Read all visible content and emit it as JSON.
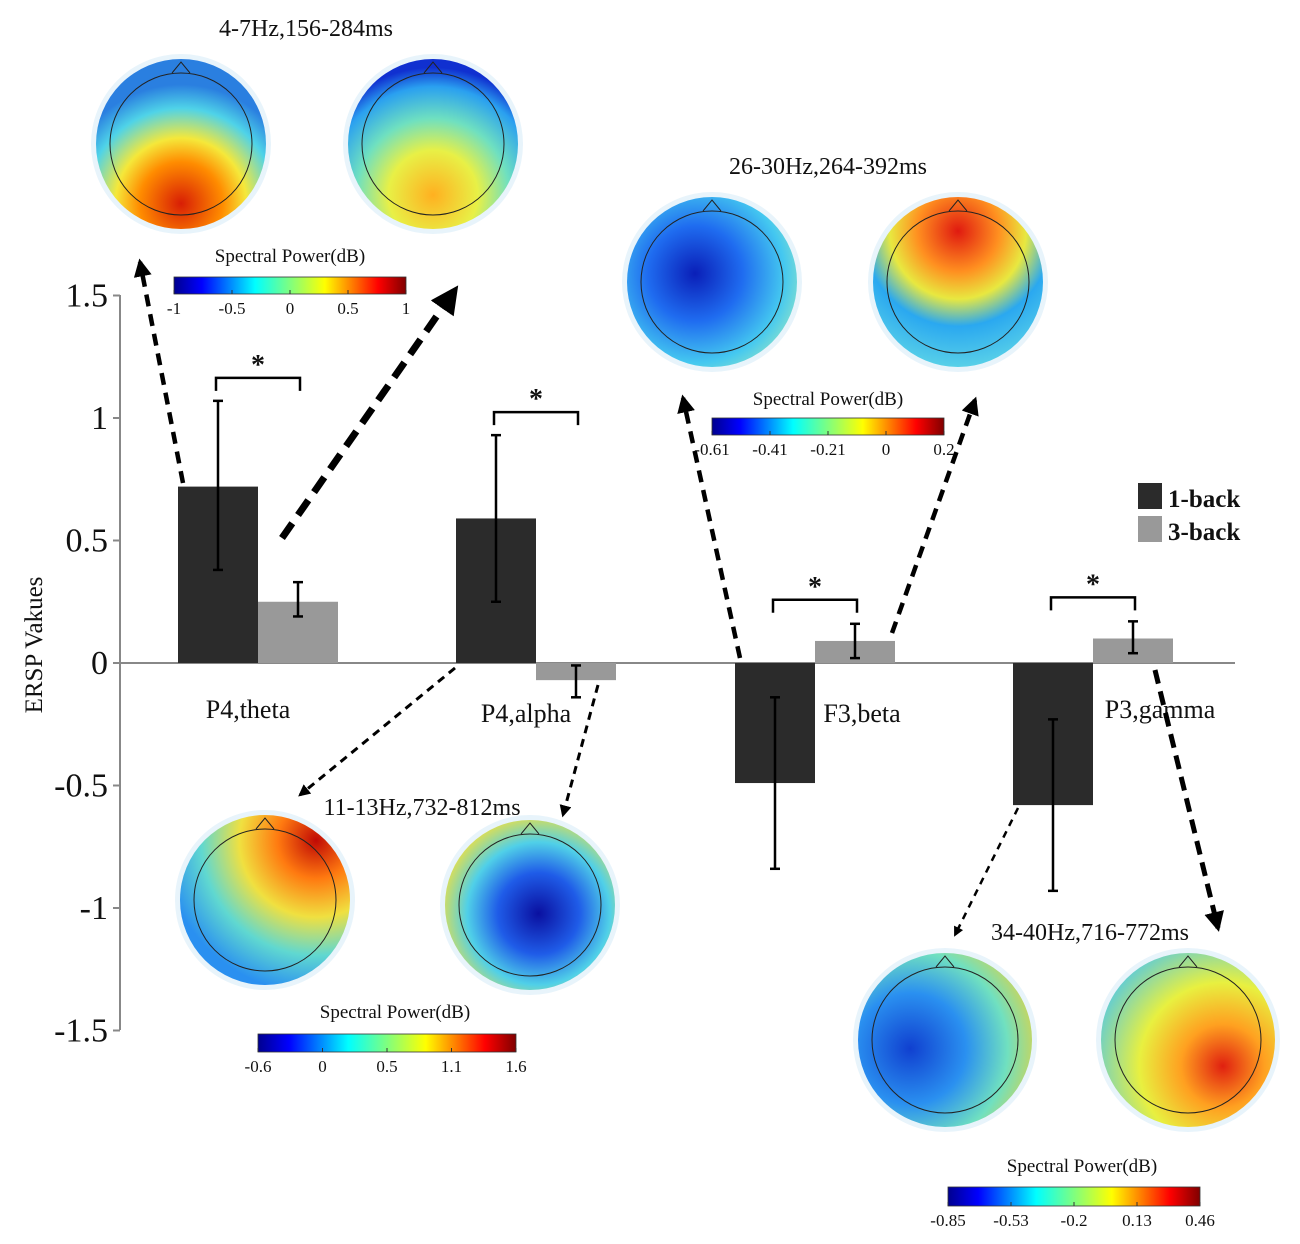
{
  "chart_data": {
    "type": "bar",
    "ylabel": "ERSP Vakues",
    "ylim": [
      -1.5,
      1.5
    ],
    "yticks": [
      {
        "value": 1.5,
        "label": "1.5"
      },
      {
        "value": 1,
        "label": "1"
      },
      {
        "value": 0.5,
        "label": "0.5"
      },
      {
        "value": 0,
        "label": "0"
      },
      {
        "value": -0.5,
        "label": "-0.5"
      },
      {
        "value": -1,
        "label": "-1"
      },
      {
        "value": -1.5,
        "label": "-1.5"
      }
    ],
    "categories": [
      "P4,theta",
      "P4,alpha",
      "F3,beta",
      "P3,gamma"
    ],
    "series": [
      {
        "name": "1-back",
        "color": "#2b2b2b",
        "values": [
          0.72,
          0.59,
          -0.49,
          -0.58
        ],
        "err_low": [
          0.38,
          0.25,
          -0.84,
          -0.93
        ],
        "err_high": [
          1.07,
          0.93,
          -0.14,
          -0.23
        ]
      },
      {
        "name": "3-back",
        "color": "#999999",
        "values": [
          0.25,
          -0.07,
          0.09,
          0.1
        ],
        "err_low": [
          0.19,
          -0.14,
          0.02,
          0.04
        ],
        "err_high": [
          0.33,
          -0.01,
          0.16,
          0.17
        ]
      }
    ],
    "significance": [
      {
        "category": "P4,theta",
        "label": "*"
      },
      {
        "category": "P4,alpha",
        "label": "*"
      },
      {
        "category": "F3,beta",
        "label": "*"
      },
      {
        "category": "P3,gamma",
        "label": "*"
      }
    ],
    "legend_position": "right",
    "topomaps": [
      {
        "title": "4-7Hz,156-284ms",
        "category": "P4,theta",
        "colorbar_label": "Spectral Power(dB)",
        "colorbar_ticks": [
          "-1",
          "-0.5",
          "0",
          "0.5",
          "1"
        ]
      },
      {
        "title": "26-30Hz,264-392ms",
        "category": "F3,beta",
        "colorbar_label": "Spectral Power(dB)",
        "colorbar_ticks": [
          "-0.61",
          "-0.41",
          "-0.21",
          "0",
          "0.2"
        ]
      },
      {
        "title": "11-13Hz,732-812ms",
        "category": "P4,alpha",
        "colorbar_label": "Spectral Power(dB)",
        "colorbar_ticks": [
          "-0.6",
          "0",
          "0.5",
          "1.1",
          "1.6"
        ]
      },
      {
        "title": "34-40Hz,716-772ms",
        "category": "P3,gamma",
        "colorbar_label": "Spectral Power(dB)",
        "colorbar_ticks": [
          "-0.85",
          "-0.53",
          "-0.2",
          "0.13",
          "0.46"
        ]
      }
    ]
  }
}
